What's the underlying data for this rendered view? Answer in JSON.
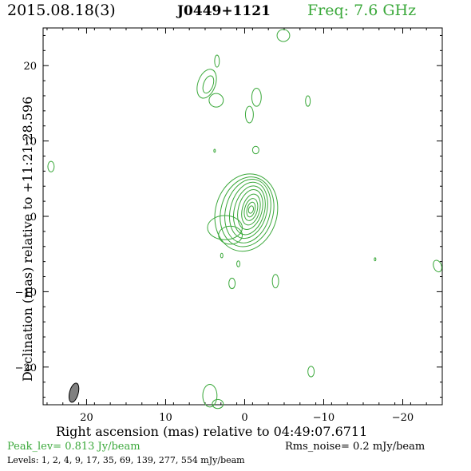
{
  "header": {
    "date": "2015.08.18(3)",
    "source": "J0449+1121",
    "freq": "Freq: 7.6 GHz"
  },
  "footer": {
    "peak": "Peak_lev=  0.813 Jy/beam",
    "rms": "Rms_noise=  0.2 mJy/beam",
    "levels": "Levels:   1,   2,   4,   9,  17,  35,  69, 139, 277, 554 mJy/beam"
  },
  "colors": {
    "contour": "#3aa83a",
    "text": "#000000",
    "beam": "#808080"
  },
  "chart_data": {
    "type": "contour",
    "xlabel": "Right ascension (mas) relative to 04:49:07.6711",
    "ylabel": "Declination (mas) relative to +11:21:28.596",
    "xlim": [
      25.5,
      -25.0
    ],
    "ylim": [
      -25.0,
      25.0
    ],
    "x_ticks": [
      20,
      10,
      0,
      -10,
      -20
    ],
    "x_tick_labels": [
      "20",
      "10",
      "0",
      "−10",
      "−20"
    ],
    "y_ticks": [
      20,
      10,
      0,
      -10,
      -20
    ],
    "y_tick_labels": [
      "20",
      "10",
      "0",
      "−10",
      "−20"
    ],
    "peak_jy_per_beam": 0.813,
    "rms_noise_mjy_per_beam": 0.2,
    "levels_mjy_per_beam": [
      1,
      2,
      4,
      9,
      17,
      35,
      69,
      139,
      277,
      554
    ],
    "core": {
      "x": -0.3,
      "y": 0.3,
      "tilt_deg": 15,
      "levels": [
        {
          "rx": 3.9,
          "ry": 5.2,
          "cx": 0.1,
          "cy": 0.2
        },
        {
          "rx": 3.3,
          "ry": 4.7,
          "cx": 0.0,
          "cy": 0.3
        },
        {
          "rx": 2.8,
          "ry": 4.3,
          "cx": -0.1,
          "cy": 0.4
        },
        {
          "rx": 2.3,
          "ry": 3.8,
          "cx": -0.2,
          "cy": 0.5
        },
        {
          "rx": 1.9,
          "ry": 3.3,
          "cx": -0.3,
          "cy": 0.5
        },
        {
          "rx": 1.5,
          "ry": 2.7,
          "cx": -0.4,
          "cy": 0.6
        },
        {
          "rx": 1.1,
          "ry": 2.1,
          "cx": -0.5,
          "cy": 0.6
        },
        {
          "rx": 0.8,
          "ry": 1.5,
          "cx": -0.5,
          "cy": 0.6
        },
        {
          "rx": 0.5,
          "ry": 1.0,
          "cx": -0.5,
          "cy": 0.6
        },
        {
          "rx": 0.3,
          "ry": 0.5,
          "cx": -0.5,
          "cy": 0.6
        }
      ],
      "outer_extensions": [
        {
          "x": 2.5,
          "y": -1.5,
          "rx": 2.2,
          "ry": 1.6
        },
        {
          "x": 1.8,
          "y": -2.5,
          "rx": 1.5,
          "ry": 1.2
        }
      ]
    },
    "islands": [
      {
        "x": 4.8,
        "y": 17.6,
        "rx": 1.1,
        "ry": 2.0,
        "tilt_deg": 20
      },
      {
        "x": 4.6,
        "y": 17.5,
        "rx": 0.6,
        "ry": 1.2,
        "tilt_deg": 20
      },
      {
        "x": 3.6,
        "y": 15.4,
        "rx": 0.9,
        "ry": 0.9,
        "tilt_deg": 0
      },
      {
        "x": 3.5,
        "y": 20.6,
        "rx": 0.3,
        "ry": 0.8,
        "tilt_deg": 0
      },
      {
        "x": -1.5,
        "y": 15.8,
        "rx": 0.6,
        "ry": 1.2,
        "tilt_deg": 0
      },
      {
        "x": -0.6,
        "y": 13.5,
        "rx": 0.5,
        "ry": 1.1,
        "tilt_deg": 0
      },
      {
        "x": -4.9,
        "y": 24.0,
        "rx": 0.8,
        "ry": 0.8,
        "tilt_deg": 0
      },
      {
        "x": -8.0,
        "y": 15.3,
        "rx": 0.3,
        "ry": 0.7,
        "tilt_deg": 0
      },
      {
        "x": 3.8,
        "y": 8.7,
        "rx": 0.1,
        "ry": 0.2,
        "tilt_deg": 0
      },
      {
        "x": -1.4,
        "y": 8.8,
        "rx": 0.4,
        "ry": 0.5,
        "tilt_deg": 0
      },
      {
        "x": 24.5,
        "y": 6.6,
        "rx": 0.4,
        "ry": 0.7,
        "tilt_deg": 0
      },
      {
        "x": 2.9,
        "y": -5.2,
        "rx": 0.15,
        "ry": 0.3,
        "tilt_deg": 0
      },
      {
        "x": 0.8,
        "y": -6.3,
        "rx": 0.2,
        "ry": 0.4,
        "tilt_deg": 0
      },
      {
        "x": 1.6,
        "y": -8.9,
        "rx": 0.4,
        "ry": 0.7,
        "tilt_deg": 0
      },
      {
        "x": -3.9,
        "y": -8.6,
        "rx": 0.4,
        "ry": 0.9,
        "tilt_deg": 0
      },
      {
        "x": -16.5,
        "y": -5.7,
        "rx": 0.1,
        "ry": 0.2,
        "tilt_deg": 0
      },
      {
        "x": -24.4,
        "y": -6.6,
        "rx": 0.5,
        "ry": 0.8,
        "tilt_deg": -20
      },
      {
        "x": -8.4,
        "y": -20.6,
        "rx": 0.4,
        "ry": 0.7,
        "tilt_deg": 0
      },
      {
        "x": 4.4,
        "y": -23.8,
        "rx": 0.9,
        "ry": 1.5,
        "tilt_deg": 0
      },
      {
        "x": 3.4,
        "y": -24.9,
        "rx": 0.7,
        "ry": 0.6,
        "tilt_deg": 0
      }
    ],
    "beam": {
      "x": 21.6,
      "y": -23.4,
      "rx": 0.55,
      "ry": 1.3,
      "tilt_deg": 15
    }
  }
}
